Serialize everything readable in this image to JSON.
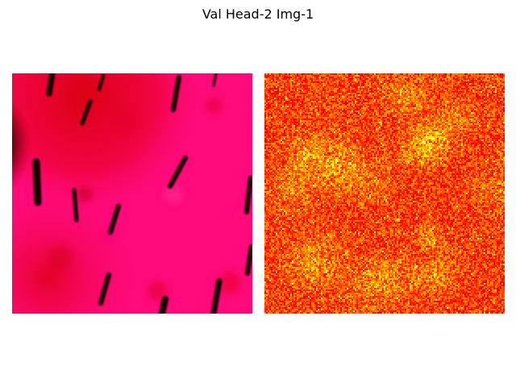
{
  "figure": {
    "title": "Val Head-2 Img-1"
  },
  "panels": [
    {
      "name": "input-image",
      "description_colors": {
        "base": "#ff0a7a",
        "dark_region": "#1a0000",
        "red_patch": "#e00018",
        "hair": "#120000"
      }
    },
    {
      "name": "attention-heatmap",
      "colormap": "hot",
      "colors": {
        "low": "#b00000",
        "mid": "#ff3000",
        "high": "#ffe040"
      }
    }
  ]
}
